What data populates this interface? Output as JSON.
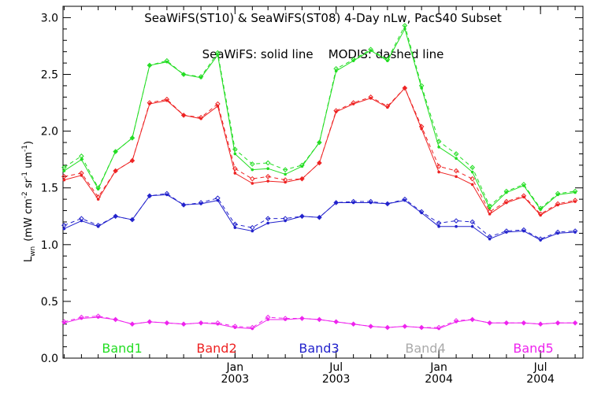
{
  "chart_data": {
    "type": "line",
    "title": "SeaWiFS(ST10) & SeaWiFS(ST08) 4-Day nLw, PacS40 Subset",
    "annotation": "SeaWiFS: solid line    MODIS: dashed line",
    "ylabel_main": "L",
    "ylabel_sub": "wn",
    "ylabel_units": "(mW cm",
    "ylabel_exp1": "-2",
    "ylabel_mid1": " sr",
    "ylabel_exp2": "-1",
    "ylabel_mid2": " um",
    "ylabel_exp3": "-1",
    "ylabel_end": ")",
    "ylim": [
      0.0,
      3.1
    ],
    "yticks": [
      "0.0",
      "0.5",
      "1.0",
      "1.5",
      "2.0",
      "2.5",
      "3.0"
    ],
    "xlim": [
      "2002-02-27",
      "2004-09-15"
    ],
    "xticks": [
      {
        "month": "Jan",
        "year": "2003",
        "date": "2003-01-01"
      },
      {
        "month": "Jul",
        "year": "2003",
        "date": "2003-07-01"
      },
      {
        "month": "Jan",
        "year": "2004",
        "date": "2004-01-01"
      },
      {
        "month": "Jul",
        "year": "2004",
        "date": "2004-07-01"
      }
    ],
    "grid": false,
    "legend_position": "bottom",
    "x": [
      "2002-03-01",
      "2002-04-01",
      "2002-05-01",
      "2002-06-01",
      "2002-07-01",
      "2002-08-01",
      "2002-09-01",
      "2002-10-01",
      "2002-11-01",
      "2002-12-01",
      "2003-01-01",
      "2003-02-01",
      "2003-03-01",
      "2003-04-01",
      "2003-05-01",
      "2003-06-01",
      "2003-07-01",
      "2003-08-01",
      "2003-09-01",
      "2003-10-01",
      "2003-11-01",
      "2003-12-01",
      "2004-01-01",
      "2004-02-01",
      "2004-03-01",
      "2004-04-01",
      "2004-05-01",
      "2004-06-01",
      "2004-07-01",
      "2004-08-01",
      "2004-09-01"
    ],
    "series": [
      {
        "name": "Band1",
        "color": "#22dd22",
        "seawifs": [
          1.65,
          1.75,
          1.49,
          1.82,
          1.94,
          2.58,
          2.61,
          2.5,
          2.47,
          2.67,
          1.8,
          1.66,
          1.67,
          1.62,
          1.69,
          1.9,
          2.53,
          2.62,
          2.71,
          2.62,
          2.9,
          2.38,
          1.86,
          1.76,
          1.64,
          1.32,
          1.46,
          1.52,
          1.31,
          1.44,
          1.46
        ],
        "modis": [
          1.68,
          1.78,
          1.5,
          1.82,
          1.94,
          2.58,
          2.62,
          2.5,
          2.48,
          2.69,
          1.84,
          1.71,
          1.72,
          1.66,
          1.7,
          1.9,
          2.55,
          2.63,
          2.72,
          2.63,
          2.93,
          2.4,
          1.91,
          1.8,
          1.68,
          1.34,
          1.47,
          1.53,
          1.32,
          1.45,
          1.47
        ]
      },
      {
        "name": "Band2",
        "color": "#ee2222",
        "seawifs": [
          1.57,
          1.61,
          1.4,
          1.65,
          1.74,
          2.24,
          2.27,
          2.14,
          2.11,
          2.22,
          1.63,
          1.54,
          1.56,
          1.55,
          1.58,
          1.72,
          2.17,
          2.24,
          2.29,
          2.21,
          2.38,
          2.02,
          1.64,
          1.6,
          1.53,
          1.27,
          1.37,
          1.42,
          1.26,
          1.35,
          1.38
        ],
        "modis": [
          1.6,
          1.63,
          1.42,
          1.65,
          1.74,
          2.25,
          2.28,
          2.14,
          2.12,
          2.24,
          1.67,
          1.58,
          1.6,
          1.57,
          1.58,
          1.72,
          2.18,
          2.25,
          2.3,
          2.22,
          2.38,
          2.04,
          1.69,
          1.65,
          1.58,
          1.29,
          1.38,
          1.43,
          1.27,
          1.36,
          1.39
        ]
      },
      {
        "name": "Band3",
        "color": "#2222cc",
        "seawifs": [
          1.14,
          1.21,
          1.16,
          1.25,
          1.22,
          1.43,
          1.44,
          1.35,
          1.36,
          1.39,
          1.15,
          1.12,
          1.19,
          1.21,
          1.25,
          1.24,
          1.37,
          1.37,
          1.37,
          1.36,
          1.39,
          1.28,
          1.16,
          1.16,
          1.16,
          1.05,
          1.11,
          1.12,
          1.04,
          1.1,
          1.11
        ],
        "modis": [
          1.17,
          1.23,
          1.17,
          1.25,
          1.22,
          1.43,
          1.45,
          1.35,
          1.37,
          1.41,
          1.18,
          1.15,
          1.23,
          1.23,
          1.25,
          1.24,
          1.37,
          1.38,
          1.38,
          1.36,
          1.4,
          1.29,
          1.19,
          1.21,
          1.2,
          1.07,
          1.12,
          1.13,
          1.05,
          1.11,
          1.12
        ]
      },
      {
        "name": "Band4",
        "color": "#aaaaaa",
        "seawifs": [],
        "modis": []
      },
      {
        "name": "Band5",
        "color": "#ee22ee",
        "seawifs": [
          0.31,
          0.35,
          0.36,
          0.34,
          0.3,
          0.32,
          0.31,
          0.3,
          0.31,
          0.3,
          0.27,
          0.26,
          0.34,
          0.34,
          0.35,
          0.34,
          0.32,
          0.3,
          0.28,
          0.27,
          0.28,
          0.27,
          0.26,
          0.32,
          0.34,
          0.31,
          0.31,
          0.31,
          0.3,
          0.31,
          0.31
        ],
        "modis": [
          0.32,
          0.36,
          0.37,
          0.34,
          0.3,
          0.32,
          0.31,
          0.3,
          0.31,
          0.31,
          0.28,
          0.27,
          0.36,
          0.35,
          0.35,
          0.34,
          0.32,
          0.3,
          0.28,
          0.27,
          0.28,
          0.27,
          0.27,
          0.33,
          0.34,
          0.31,
          0.31,
          0.31,
          0.3,
          0.31,
          0.31
        ]
      }
    ]
  }
}
